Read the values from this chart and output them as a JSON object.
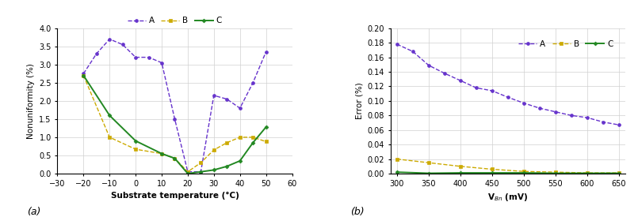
{
  "left": {
    "A_x": [
      -20,
      -15,
      -10,
      -5,
      0,
      5,
      10,
      15,
      20,
      25,
      30,
      35,
      40,
      45,
      50
    ],
    "A_y": [
      2.75,
      3.3,
      3.7,
      3.55,
      3.2,
      3.2,
      3.05,
      1.5,
      0.05,
      0.05,
      2.15,
      2.05,
      1.8,
      2.5,
      3.35
    ],
    "B_x": [
      -20,
      -10,
      0,
      10,
      15,
      20,
      25,
      30,
      35,
      40,
      45,
      50
    ],
    "B_y": [
      2.7,
      1.0,
      0.67,
      0.55,
      0.42,
      0.05,
      0.3,
      0.65,
      0.85,
      1.0,
      1.0,
      0.88
    ],
    "C_x": [
      -20,
      -10,
      0,
      10,
      15,
      20,
      25,
      30,
      35,
      40,
      45,
      50
    ],
    "C_y": [
      2.7,
      1.6,
      0.9,
      0.55,
      0.42,
      0.0,
      0.05,
      0.1,
      0.2,
      0.35,
      0.85,
      1.28
    ],
    "xlabel": "Substrate temperature (°C)",
    "ylabel": "Nonuniformity (%)",
    "xlim": [
      -30,
      60
    ],
    "ylim": [
      0,
      4
    ],
    "yticks": [
      0,
      0.5,
      1.0,
      1.5,
      2.0,
      2.5,
      3.0,
      3.5,
      4.0
    ],
    "xticks": [
      -30,
      -20,
      -10,
      0,
      10,
      20,
      30,
      40,
      50,
      60
    ],
    "label": "(a)"
  },
  "right": {
    "A_x": [
      300,
      325,
      350,
      375,
      400,
      425,
      450,
      475,
      500,
      525,
      550,
      575,
      600,
      625,
      650
    ],
    "A_y": [
      0.178,
      0.168,
      0.149,
      0.138,
      0.128,
      0.118,
      0.114,
      0.105,
      0.097,
      0.09,
      0.085,
      0.08,
      0.077,
      0.071,
      0.067
    ],
    "B_x": [
      300,
      350,
      400,
      450,
      500,
      550,
      600,
      650
    ],
    "B_y": [
      0.02,
      0.015,
      0.01,
      0.006,
      0.003,
      0.002,
      0.001,
      0.001
    ],
    "C_x": [
      300,
      350,
      400,
      450,
      500,
      550,
      600,
      650
    ],
    "C_y": [
      0.002,
      0.0005,
      0.001,
      0.001,
      0.001,
      0.0005,
      0.0005,
      0.0005
    ],
    "xlabel": "V$_{Bn}$ (mV)",
    "ylabel": "Error (%)",
    "xlim": [
      290,
      660
    ],
    "ylim": [
      0,
      0.2
    ],
    "yticks": [
      0,
      0.02,
      0.04,
      0.06,
      0.08,
      0.1,
      0.12,
      0.14,
      0.16,
      0.18,
      0.2
    ],
    "xticks": [
      300,
      350,
      400,
      450,
      500,
      550,
      600,
      650
    ],
    "label": "(b)"
  },
  "color_A": "#6633cc",
  "color_B": "#ccaa00",
  "color_C": "#228822"
}
